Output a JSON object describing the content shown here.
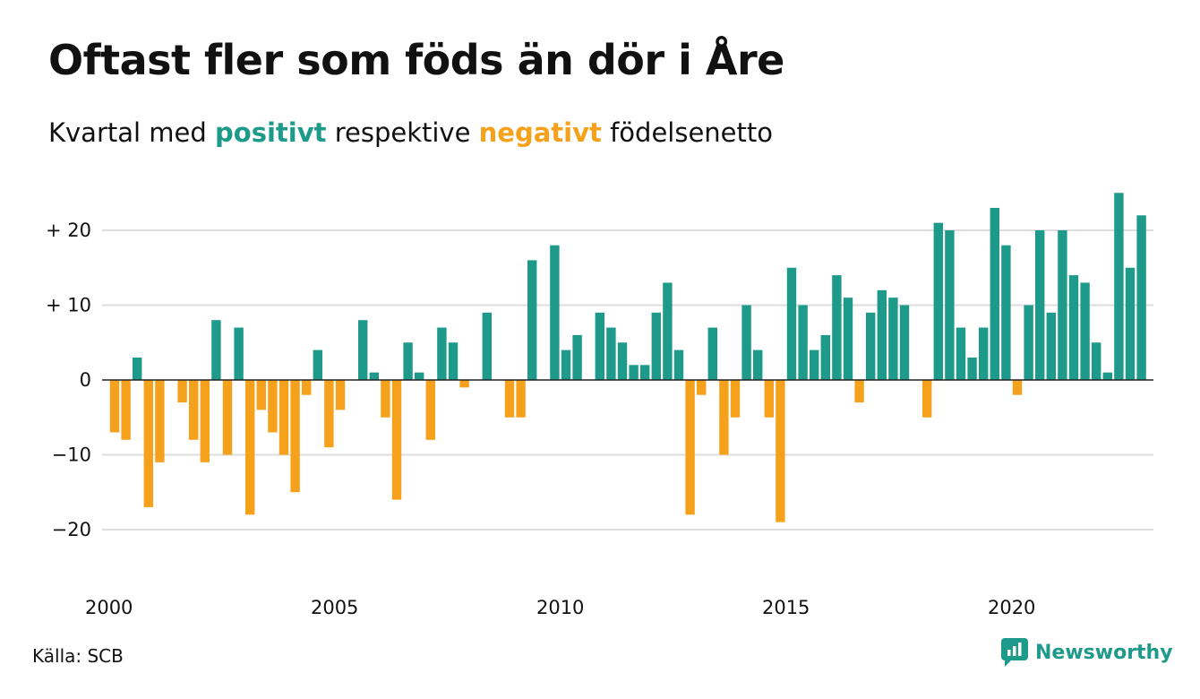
{
  "header": {
    "title": "Oftast fler som föds än dör i Åre",
    "subtitle_pre": "Kvartal med",
    "subtitle_pos": "positivt",
    "subtitle_mid": "respektive",
    "subtitle_neg": "negativt",
    "subtitle_post": "födelsenetto"
  },
  "footer": {
    "source": "Källa: SCB",
    "brand": "Newsworthy",
    "brand_icon": "newsworthy-chat-chart-icon"
  },
  "colors": {
    "positive": "#1e9a8a",
    "negative": "#f5a11c",
    "grid": "#dddddd",
    "zero_line": "#222222"
  },
  "chart_data": {
    "type": "bar",
    "x_start_year": 2000,
    "x_tick_labels": [
      "2000",
      "2005",
      "2010",
      "2015",
      "2020"
    ],
    "y_tick_labels": [
      "+ 20",
      "+ 10",
      "0",
      "−10",
      "−20"
    ],
    "y_ticks": [
      20,
      10,
      0,
      -10,
      -20
    ],
    "ylim": [
      -25,
      25
    ],
    "grid": true,
    "legend": "none",
    "values": [
      -7,
      -8,
      3,
      -17,
      -11,
      0,
      -3,
      -8,
      -11,
      8,
      -10,
      7,
      -18,
      -4,
      -7,
      -10,
      -15,
      -2,
      4,
      -9,
      -4,
      0,
      8,
      1,
      -5,
      -16,
      5,
      1,
      -8,
      7,
      5,
      -1,
      0,
      9,
      0,
      -5,
      -5,
      16,
      0,
      18,
      4,
      6,
      0,
      9,
      7,
      5,
      2,
      2,
      9,
      13,
      4,
      -18,
      -2,
      7,
      -10,
      -5,
      10,
      4,
      -5,
      -19,
      15,
      10,
      4,
      6,
      14,
      11,
      -3,
      9,
      12,
      11,
      10,
      0,
      -5,
      21,
      20,
      7,
      3,
      7,
      23,
      18,
      -2,
      10,
      20,
      9,
      20,
      14,
      13,
      5,
      1,
      25,
      15,
      22
    ]
  }
}
